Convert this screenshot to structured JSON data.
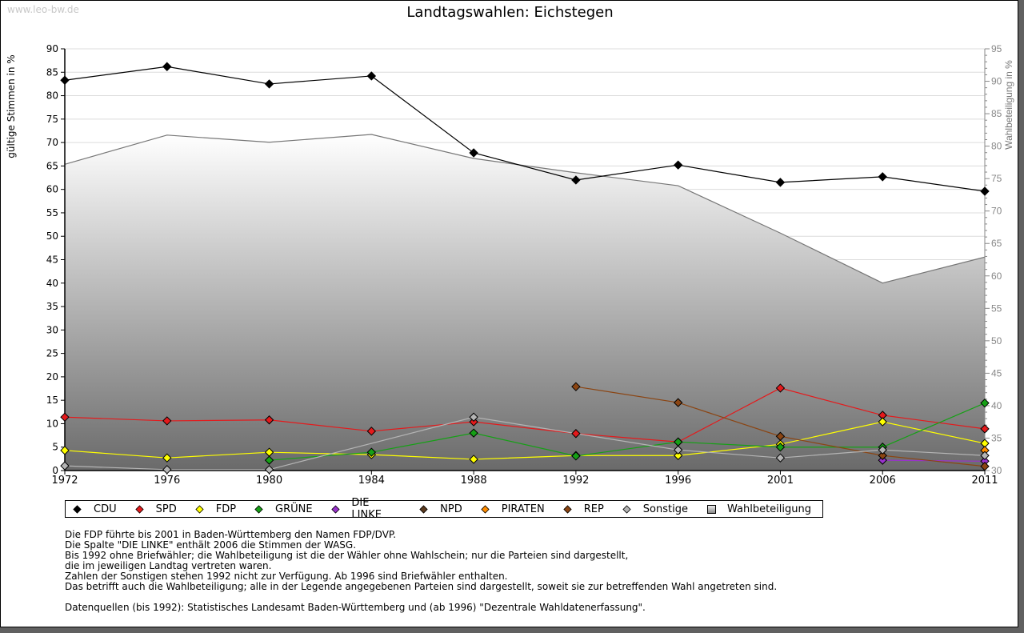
{
  "watermark": "www.leo-bw.de",
  "chart_data": {
    "type": "line",
    "title": "Landtagswahlen: Eichstegen",
    "ylabel": "gültige Stimmen in %",
    "y2label": "Wahlbeteiligung in %",
    "xlabel": "",
    "ylim": [
      0,
      90
    ],
    "y2lim": [
      30,
      95
    ],
    "yticks": [
      0,
      5,
      10,
      15,
      20,
      25,
      30,
      35,
      40,
      45,
      50,
      55,
      60,
      65,
      70,
      75,
      80,
      85,
      90
    ],
    "y2ticks": [
      30,
      35,
      40,
      45,
      50,
      55,
      60,
      65,
      70,
      75,
      80,
      85,
      90,
      95
    ],
    "grid": true,
    "categories": [
      "1972",
      "1976",
      "1980",
      "1984",
      "1988",
      "1992",
      "1996",
      "2001",
      "2006",
      "2011"
    ],
    "series": [
      {
        "name": "CDU",
        "color": "#000000",
        "values": [
          83.3,
          86.2,
          82.5,
          84.2,
          67.8,
          62.0,
          65.2,
          61.5,
          62.7,
          59.6
        ]
      },
      {
        "name": "SPD",
        "color": "#e41a1c",
        "values": [
          11.4,
          10.6,
          10.8,
          8.4,
          10.4,
          7.9,
          6.1,
          17.6,
          11.8,
          8.9
        ]
      },
      {
        "name": "FDP",
        "color": "#ffff00",
        "values": [
          4.3,
          2.7,
          3.9,
          3.4,
          2.4,
          3.2,
          3.2,
          5.6,
          10.4,
          5.8
        ]
      },
      {
        "name": "GRÜNE",
        "color": "#16a016",
        "values": [
          null,
          null,
          2.2,
          3.9,
          8.0,
          3.1,
          6.1,
          5.0,
          5.0,
          14.4
        ]
      },
      {
        "name": "DIE LINKE",
        "color": "#9932cc",
        "values": [
          null,
          null,
          null,
          null,
          null,
          null,
          null,
          null,
          2.2,
          2.0
        ]
      },
      {
        "name": "NPD",
        "color": "#5c3a1e",
        "values": [
          null,
          null,
          null,
          null,
          null,
          null,
          null,
          null,
          null,
          null
        ]
      },
      {
        "name": "PIRATEN",
        "color": "#ff8c00",
        "values": [
          null,
          null,
          null,
          null,
          null,
          null,
          null,
          null,
          null,
          4.3
        ]
      },
      {
        "name": "REP",
        "color": "#8b4513",
        "values": [
          null,
          null,
          null,
          null,
          null,
          17.9,
          14.5,
          7.3,
          3.2,
          0.9
        ]
      },
      {
        "name": "Sonstige",
        "color": "#b4b4b4",
        "values": [
          1.0,
          0.2,
          0.2,
          null,
          11.4,
          null,
          4.4,
          2.7,
          4.4,
          3.2
        ]
      }
    ],
    "turnout": {
      "name": "Wahlbeteiligung",
      "axis": "right",
      "values": [
        77.2,
        81.7,
        80.6,
        81.8,
        78.1,
        75.9,
        73.9,
        66.6,
        58.9,
        62.9
      ]
    },
    "legend_position": "bottom"
  },
  "legend": [
    "CDU",
    "SPD",
    "FDP",
    "GRÜNE",
    "DIE LINKE",
    "NPD",
    "PIRATEN",
    "REP",
    "Sonstige",
    "Wahlbeteiligung"
  ],
  "notes": [
    "Die FDP führte bis 2001 in Baden-Württemberg den Namen FDP/DVP.",
    "Die Spalte \"DIE LINKE\" enthält 2006 die Stimmen der WASG.",
    "Bis 1992 ohne Briefwähler; die Wahlbeteiligung ist die der Wähler ohne Wahlschein; nur die Parteien sind dargestellt,",
    "die im jeweiligen Landtag vertreten waren.",
    "Zahlen der Sonstigen stehen 1992 nicht zur Verfügung. Ab 1996 sind Briefwähler enthalten.",
    "Das betrifft auch die Wahlbeteiligung; alle in der Legende angegebenen Parteien sind dargestellt, soweit sie zur betreffenden Wahl angetreten sind.",
    "",
    "Datenquellen (bis 1992): Statistisches Landesamt Baden-Württemberg und (ab 1996) \"Dezentrale Wahldatenerfassung\"."
  ]
}
